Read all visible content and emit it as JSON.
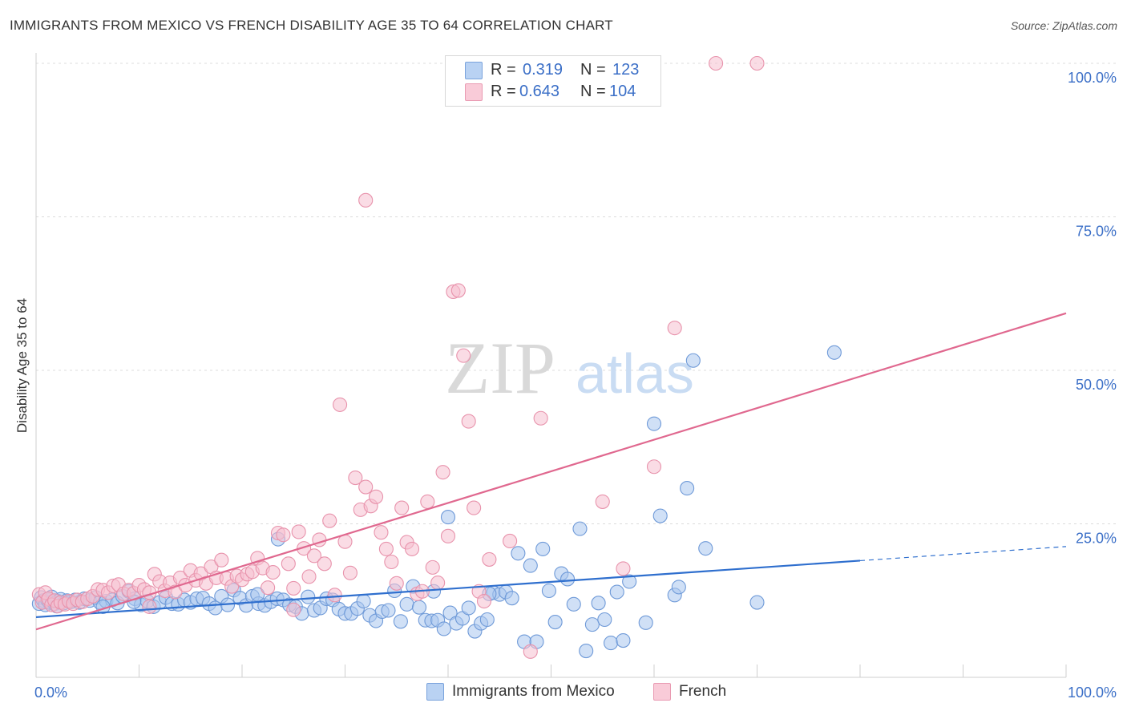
{
  "title": "IMMIGRANTS FROM MEXICO VS FRENCH DISABILITY AGE 35 TO 64 CORRELATION CHART",
  "source": "Source: ZipAtlas.com",
  "legend": {
    "r_label": "R =",
    "n_label": "N =",
    "series": [
      {
        "name": "Immigrants from Mexico",
        "r": "0.319",
        "n": "123"
      },
      {
        "name": "French",
        "r": "0.643",
        "n": "104"
      }
    ]
  },
  "watermark": {
    "part1": "ZIP",
    "part2": "atlas"
  },
  "colors": {
    "blue_fill": "#a9c6ef",
    "blue_stroke": "#6f9ad8",
    "blue_line": "#2f6fce",
    "pink_fill": "#f6bfcf",
    "pink_stroke": "#e893ac",
    "pink_line": "#e0688f",
    "axis_label": "#3b6fc7"
  },
  "chart_data": {
    "type": "scatter",
    "xlabel": "",
    "ylabel": "Disability Age 35 to 64",
    "xlim": [
      0,
      100
    ],
    "ylim": [
      0,
      100
    ],
    "x_tick_labels": [
      "0.0%",
      "100.0%"
    ],
    "y_tick_labels": [
      "25.0%",
      "50.0%",
      "75.0%",
      "100.0%"
    ],
    "y_ticks": [
      25,
      50,
      75,
      100
    ],
    "grid": true,
    "legend_position": "top-center",
    "series": [
      {
        "name": "Immigrants from Mexico",
        "color": "#a9c6ef",
        "trend": {
          "x0": 0,
          "y0": 9.8,
          "x1": 80,
          "y1": 19.0,
          "dashed_to_x": 100,
          "dashed_to_y": 21.3
        },
        "points": [
          [
            0.3,
            12
          ],
          [
            0.5,
            13
          ],
          [
            0.7,
            12.5
          ],
          [
            0.9,
            11.8
          ],
          [
            1.1,
            12.6
          ],
          [
            1.3,
            12.2
          ],
          [
            1.5,
            13.1
          ],
          [
            1.8,
            12
          ],
          [
            2.1,
            12.4
          ],
          [
            2.4,
            12.7
          ],
          [
            2.7,
            12.1
          ],
          [
            3.0,
            12.5
          ],
          [
            3.4,
            12.3
          ],
          [
            3.8,
            12.6
          ],
          [
            4.2,
            12.2
          ],
          [
            4.7,
            12.8
          ],
          [
            5.2,
            12.5
          ],
          [
            5.8,
            13
          ],
          [
            6.2,
            12.2
          ],
          [
            6.8,
            12.4
          ],
          [
            7.4,
            12.6
          ],
          [
            7.9,
            12.1
          ],
          [
            8.4,
            13.2
          ],
          [
            9.0,
            14
          ],
          [
            9.6,
            12.8
          ],
          [
            10.2,
            11.8
          ],
          [
            10.8,
            12.4
          ],
          [
            11.4,
            11.5
          ],
          [
            12.0,
            12.2
          ],
          [
            12.6,
            13
          ],
          [
            13.2,
            12
          ],
          [
            13.8,
            11.9
          ],
          [
            14.4,
            12.6
          ],
          [
            15.0,
            12.2
          ],
          [
            15.6,
            12.8
          ],
          [
            16.2,
            12.9
          ],
          [
            16.8,
            12
          ],
          [
            17.4,
            11.3
          ],
          [
            18.0,
            13.2
          ],
          [
            18.6,
            11.8
          ],
          [
            19.2,
            14.2
          ],
          [
            19.8,
            12.9
          ],
          [
            20.4,
            11.7
          ],
          [
            21.0,
            13.2
          ],
          [
            21.6,
            12
          ],
          [
            22.2,
            11.7
          ],
          [
            22.8,
            12.3
          ],
          [
            23.4,
            12.8
          ],
          [
            24.0,
            12.6
          ],
          [
            24.6,
            11.8
          ],
          [
            25.2,
            11.5
          ],
          [
            25.8,
            10.4
          ],
          [
            26.4,
            13.1
          ],
          [
            27.0,
            10.9
          ],
          [
            27.6,
            11.3
          ],
          [
            28.2,
            12.8
          ],
          [
            28.8,
            12.6
          ],
          [
            29.4,
            11.1
          ],
          [
            30.0,
            10.4
          ],
          [
            30.6,
            10.4
          ],
          [
            31.2,
            11.2
          ],
          [
            31.8,
            12.4
          ],
          [
            32.4,
            10.1
          ],
          [
            33.0,
            9.2
          ],
          [
            33.6,
            10.7
          ],
          [
            34.2,
            10.9
          ],
          [
            34.8,
            14.1
          ],
          [
            35.4,
            9.1
          ],
          [
            36.0,
            11.9
          ],
          [
            36.6,
            14.8
          ],
          [
            37.2,
            11.4
          ],
          [
            37.8,
            9.3
          ],
          [
            38.4,
            9.2
          ],
          [
            39.0,
            9.3
          ],
          [
            39.6,
            7.9
          ],
          [
            40.2,
            10.5
          ],
          [
            40.8,
            8.8
          ],
          [
            41.4,
            9.6
          ],
          [
            42.0,
            11.3
          ],
          [
            42.6,
            7.5
          ],
          [
            43.2,
            8.8
          ],
          [
            43.8,
            9.4
          ],
          [
            44.4,
            13.8
          ],
          [
            45.0,
            13.5
          ],
          [
            45.6,
            13.9
          ],
          [
            46.2,
            12.9
          ],
          [
            46.8,
            20.2
          ],
          [
            47.4,
            5.8
          ],
          [
            48.0,
            18.2
          ],
          [
            48.6,
            5.8
          ],
          [
            49.2,
            20.9
          ],
          [
            49.8,
            14.1
          ],
          [
            50.4,
            9.0
          ],
          [
            51.0,
            16.9
          ],
          [
            51.6,
            16.0
          ],
          [
            52.2,
            11.9
          ],
          [
            52.8,
            24.2
          ],
          [
            53.4,
            4.3
          ],
          [
            54.0,
            8.6
          ],
          [
            54.6,
            12.1
          ],
          [
            55.2,
            9.4
          ],
          [
            55.8,
            5.6
          ],
          [
            56.4,
            13.9
          ],
          [
            57.0,
            6.0
          ],
          [
            57.6,
            15.6
          ],
          [
            59.2,
            8.9
          ],
          [
            60.0,
            41.3
          ],
          [
            60.6,
            26.3
          ],
          [
            62.0,
            13.4
          ],
          [
            62.4,
            14.7
          ],
          [
            63.2,
            30.8
          ],
          [
            63.8,
            51.6
          ],
          [
            65.0,
            21.0
          ],
          [
            70.0,
            12.2
          ],
          [
            77.5,
            52.9
          ],
          [
            23.5,
            22.5
          ],
          [
            40.0,
            26.1
          ],
          [
            38.6,
            14.0
          ],
          [
            44.0,
            13.6
          ],
          [
            21.5,
            13.5
          ],
          [
            2.0,
            11.6
          ],
          [
            6.5,
            11.5
          ],
          [
            9.5,
            12.3
          ]
        ]
      },
      {
        "name": "French",
        "color": "#f6bfcf",
        "trend": {
          "x0": 0,
          "y0": 7.8,
          "x1": 100,
          "y1": 59.3
        },
        "points": [
          [
            0.3,
            13.5
          ],
          [
            0.6,
            12.2
          ],
          [
            0.9,
            13.8
          ],
          [
            1.2,
            12.8
          ],
          [
            1.5,
            11.8
          ],
          [
            1.8,
            12.5
          ],
          [
            2.1,
            11.6
          ],
          [
            2.4,
            12.2
          ],
          [
            2.8,
            11.9
          ],
          [
            3.2,
            12.4
          ],
          [
            3.6,
            12.0
          ],
          [
            4.0,
            12.6
          ],
          [
            4.5,
            12.3
          ],
          [
            5.0,
            12.8
          ],
          [
            5.5,
            13.2
          ],
          [
            6.0,
            14.3
          ],
          [
            6.5,
            14.2
          ],
          [
            7.0,
            13.8
          ],
          [
            7.5,
            14.9
          ],
          [
            8.0,
            15.1
          ],
          [
            8.5,
            13.6
          ],
          [
            9.0,
            14.2
          ],
          [
            9.5,
            13.7
          ],
          [
            10.0,
            15.0
          ],
          [
            10.5,
            14.3
          ],
          [
            11.0,
            13.8
          ],
          [
            11.5,
            16.8
          ],
          [
            12.0,
            15.6
          ],
          [
            12.5,
            14.1
          ],
          [
            13.0,
            15.4
          ],
          [
            13.5,
            13.9
          ],
          [
            14.0,
            16.2
          ],
          [
            14.5,
            15.0
          ],
          [
            15.0,
            17.4
          ],
          [
            15.5,
            15.8
          ],
          [
            16.0,
            16.9
          ],
          [
            16.5,
            15.3
          ],
          [
            17.0,
            18.0
          ],
          [
            17.5,
            16.2
          ],
          [
            18.0,
            19.1
          ],
          [
            18.5,
            16.1
          ],
          [
            19.0,
            14.8
          ],
          [
            19.5,
            16.5
          ],
          [
            20.0,
            15.9
          ],
          [
            20.5,
            16.8
          ],
          [
            21.0,
            17.2
          ],
          [
            21.5,
            19.4
          ],
          [
            22.0,
            17.8
          ],
          [
            22.5,
            14.6
          ],
          [
            23.0,
            17.1
          ],
          [
            23.5,
            23.5
          ],
          [
            24.0,
            23.2
          ],
          [
            24.5,
            18.5
          ],
          [
            25.0,
            14.5
          ],
          [
            25.5,
            23.7
          ],
          [
            26.0,
            21.0
          ],
          [
            26.5,
            16.4
          ],
          [
            27.0,
            19.8
          ],
          [
            27.5,
            22.4
          ],
          [
            28.0,
            18.5
          ],
          [
            28.5,
            25.5
          ],
          [
            29.0,
            13.4
          ],
          [
            29.5,
            44.4
          ],
          [
            30.0,
            22.1
          ],
          [
            30.5,
            17.0
          ],
          [
            31.0,
            32.5
          ],
          [
            31.5,
            27.3
          ],
          [
            32.0,
            31.0
          ],
          [
            32.5,
            27.9
          ],
          [
            33.0,
            29.4
          ],
          [
            33.5,
            23.6
          ],
          [
            34.0,
            20.9
          ],
          [
            34.5,
            18.8
          ],
          [
            35.0,
            15.3
          ],
          [
            35.5,
            27.6
          ],
          [
            36.0,
            22.0
          ],
          [
            36.5,
            20.9
          ],
          [
            37.0,
            13.6
          ],
          [
            37.5,
            14.0
          ],
          [
            38.0,
            28.6
          ],
          [
            38.5,
            17.9
          ],
          [
            39.0,
            15.4
          ],
          [
            39.5,
            33.4
          ],
          [
            40.0,
            23.0
          ],
          [
            40.5,
            62.8
          ],
          [
            41.0,
            63.0
          ],
          [
            41.5,
            52.4
          ],
          [
            42.0,
            41.7
          ],
          [
            42.5,
            27.6
          ],
          [
            43.0,
            14.0
          ],
          [
            43.5,
            12.4
          ],
          [
            44.0,
            19.2
          ],
          [
            46.0,
            22.2
          ],
          [
            48.0,
            4.2
          ],
          [
            49.0,
            42.2
          ],
          [
            55.0,
            28.6
          ],
          [
            57.0,
            17.7
          ],
          [
            60.0,
            34.3
          ],
          [
            62.0,
            56.9
          ],
          [
            66.0,
            100
          ],
          [
            70.0,
            100
          ],
          [
            32.0,
            77.7
          ],
          [
            25.0,
            11.0
          ],
          [
            11.0,
            11.5
          ]
        ]
      }
    ]
  }
}
